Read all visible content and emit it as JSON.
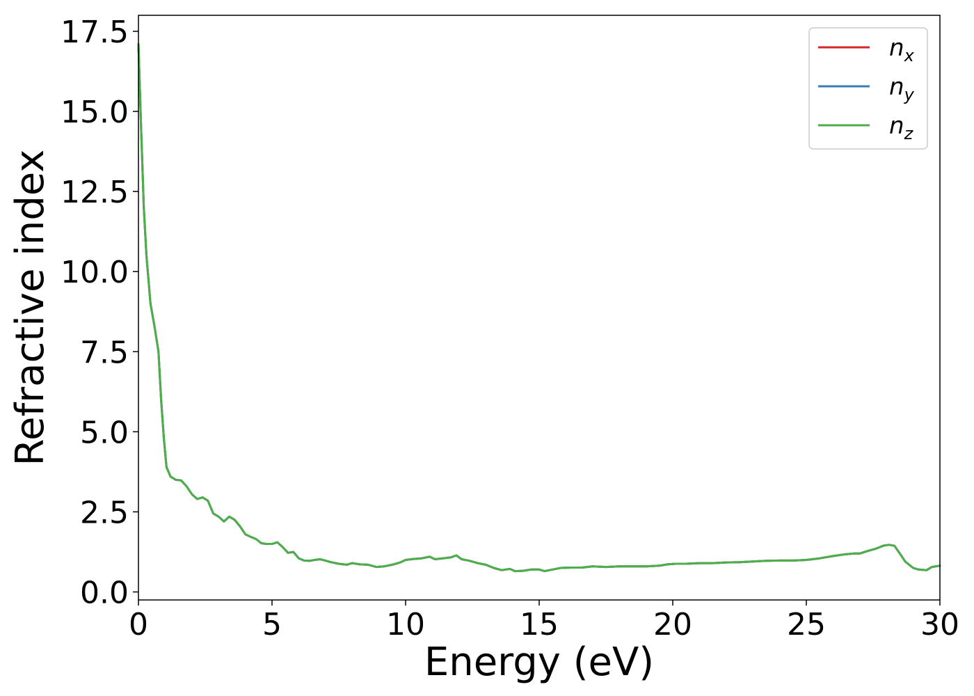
{
  "chart_data": {
    "type": "line",
    "title": "",
    "xlabel": "Energy (eV)",
    "ylabel": "Refractive index",
    "xlim": [
      0,
      30
    ],
    "ylim": [
      -0.25,
      18
    ],
    "xticks": [
      0,
      5,
      10,
      15,
      20,
      25,
      30
    ],
    "xtick_labels": [
      "0",
      "5",
      "10",
      "15",
      "20",
      "25",
      "30"
    ],
    "yticks": [
      0,
      2.5,
      5,
      7.5,
      10,
      12.5,
      15,
      17.5
    ],
    "ytick_labels": [
      "0.0",
      "2.5",
      "5.0",
      "7.5",
      "10.0",
      "12.5",
      "15.0",
      "17.5"
    ],
    "grid": false,
    "legend_position": "top-right",
    "x": [
      0.0,
      0.1,
      0.2,
      0.3,
      0.45,
      0.6,
      0.75,
      0.85,
      0.95,
      1.05,
      1.2,
      1.4,
      1.6,
      1.8,
      2.0,
      2.2,
      2.4,
      2.6,
      2.8,
      3.0,
      3.2,
      3.4,
      3.6,
      3.8,
      4.0,
      4.2,
      4.4,
      4.6,
      4.8,
      5.0,
      5.2,
      5.4,
      5.6,
      5.8,
      6.0,
      6.2,
      6.4,
      6.6,
      6.8,
      7.0,
      7.2,
      7.5,
      7.8,
      8.0,
      8.3,
      8.6,
      8.9,
      9.2,
      9.5,
      9.8,
      10.0,
      10.3,
      10.6,
      10.9,
      11.1,
      11.4,
      11.7,
      11.9,
      12.1,
      12.4,
      12.7,
      13.0,
      13.3,
      13.6,
      13.9,
      14.1,
      14.4,
      14.7,
      15.0,
      15.2,
      15.5,
      15.8,
      16.2,
      16.6,
      17.0,
      17.5,
      18.0,
      18.5,
      19.0,
      19.5,
      19.8,
      20.1,
      20.5,
      21.0,
      21.5,
      22.0,
      22.5,
      23.0,
      23.5,
      24.0,
      24.5,
      25.0,
      25.5,
      26.0,
      26.5,
      26.8,
      27.0,
      27.3,
      27.6,
      27.9,
      28.1,
      28.3,
      28.5,
      28.7,
      29.0,
      29.2,
      29.5,
      29.7,
      30.0
    ],
    "series": [
      {
        "name": "n_x",
        "color": "#d62728",
        "values": [
          17.1,
          14.5,
          12.0,
          10.5,
          9.0,
          8.3,
          7.5,
          6.0,
          4.8,
          3.9,
          3.6,
          3.5,
          3.48,
          3.3,
          3.05,
          2.9,
          2.95,
          2.85,
          2.45,
          2.35,
          2.2,
          2.35,
          2.25,
          2.05,
          1.8,
          1.72,
          1.65,
          1.52,
          1.5,
          1.5,
          1.55,
          1.4,
          1.22,
          1.25,
          1.05,
          0.98,
          0.97,
          1.0,
          1.02,
          0.98,
          0.93,
          0.88,
          0.85,
          0.9,
          0.86,
          0.85,
          0.78,
          0.8,
          0.85,
          0.92,
          1.0,
          1.03,
          1.05,
          1.1,
          1.02,
          1.05,
          1.08,
          1.14,
          1.02,
          0.97,
          0.9,
          0.85,
          0.75,
          0.68,
          0.72,
          0.65,
          0.66,
          0.7,
          0.7,
          0.65,
          0.7,
          0.75,
          0.76,
          0.76,
          0.8,
          0.78,
          0.8,
          0.8,
          0.8,
          0.82,
          0.86,
          0.88,
          0.88,
          0.9,
          0.9,
          0.92,
          0.93,
          0.95,
          0.97,
          0.98,
          0.98,
          1.0,
          1.05,
          1.12,
          1.18,
          1.2,
          1.2,
          1.28,
          1.35,
          1.45,
          1.47,
          1.44,
          1.2,
          0.95,
          0.75,
          0.7,
          0.68,
          0.78,
          0.82
        ]
      },
      {
        "name": "n_y",
        "color": "#377eb8",
        "values": [
          17.1,
          14.5,
          12.0,
          10.5,
          9.0,
          8.3,
          7.5,
          6.0,
          4.8,
          3.9,
          3.6,
          3.5,
          3.48,
          3.3,
          3.05,
          2.9,
          2.95,
          2.85,
          2.45,
          2.35,
          2.2,
          2.35,
          2.25,
          2.05,
          1.8,
          1.72,
          1.65,
          1.52,
          1.5,
          1.5,
          1.55,
          1.4,
          1.22,
          1.25,
          1.05,
          0.98,
          0.97,
          1.0,
          1.02,
          0.98,
          0.93,
          0.88,
          0.85,
          0.9,
          0.86,
          0.85,
          0.78,
          0.8,
          0.85,
          0.92,
          1.0,
          1.03,
          1.05,
          1.1,
          1.02,
          1.05,
          1.08,
          1.14,
          1.02,
          0.97,
          0.9,
          0.85,
          0.75,
          0.68,
          0.72,
          0.65,
          0.66,
          0.7,
          0.7,
          0.65,
          0.7,
          0.75,
          0.76,
          0.76,
          0.8,
          0.78,
          0.8,
          0.8,
          0.8,
          0.82,
          0.86,
          0.88,
          0.88,
          0.9,
          0.9,
          0.92,
          0.93,
          0.95,
          0.97,
          0.98,
          0.98,
          1.0,
          1.05,
          1.12,
          1.18,
          1.2,
          1.2,
          1.28,
          1.35,
          1.45,
          1.47,
          1.44,
          1.2,
          0.95,
          0.75,
          0.7,
          0.68,
          0.78,
          0.82
        ]
      },
      {
        "name": "n_z",
        "color": "#4daf4a",
        "values": [
          17.1,
          14.5,
          12.0,
          10.5,
          9.0,
          8.3,
          7.5,
          6.0,
          4.8,
          3.9,
          3.6,
          3.5,
          3.48,
          3.3,
          3.05,
          2.9,
          2.95,
          2.85,
          2.45,
          2.35,
          2.2,
          2.35,
          2.25,
          2.05,
          1.8,
          1.72,
          1.65,
          1.52,
          1.5,
          1.5,
          1.55,
          1.4,
          1.22,
          1.25,
          1.05,
          0.98,
          0.97,
          1.0,
          1.02,
          0.98,
          0.93,
          0.88,
          0.85,
          0.9,
          0.86,
          0.85,
          0.78,
          0.8,
          0.85,
          0.92,
          1.0,
          1.03,
          1.05,
          1.1,
          1.02,
          1.05,
          1.08,
          1.14,
          1.02,
          0.97,
          0.9,
          0.85,
          0.75,
          0.68,
          0.72,
          0.65,
          0.66,
          0.7,
          0.7,
          0.65,
          0.7,
          0.75,
          0.76,
          0.76,
          0.8,
          0.78,
          0.8,
          0.8,
          0.8,
          0.82,
          0.86,
          0.88,
          0.88,
          0.9,
          0.9,
          0.92,
          0.93,
          0.95,
          0.97,
          0.98,
          0.98,
          1.0,
          1.05,
          1.12,
          1.18,
          1.2,
          1.2,
          1.28,
          1.35,
          1.45,
          1.47,
          1.44,
          1.2,
          0.95,
          0.75,
          0.7,
          0.68,
          0.78,
          0.82
        ]
      }
    ],
    "legend": [
      {
        "base": "n",
        "sub": "x",
        "color": "#d62728"
      },
      {
        "base": "n",
        "sub": "y",
        "color": "#377eb8"
      },
      {
        "base": "n",
        "sub": "z",
        "color": "#4daf4a"
      }
    ]
  }
}
